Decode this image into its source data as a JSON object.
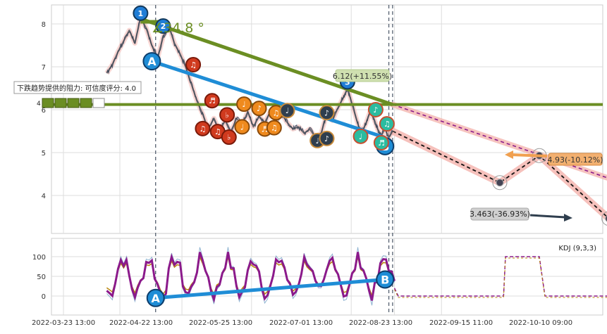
{
  "chart_data": [
    {
      "type": "line",
      "title": "",
      "y_ticks": [
        4,
        5,
        6,
        7,
        8
      ],
      "ylim": [
        3.1,
        8.4
      ],
      "x_ticks": [
        "2022-03-23 13:00",
        "2022-04-22 13:00",
        "2022-05-25 13:00",
        "2022-07-01 13:00",
        "2022-08-23 13:00",
        "2022-09-15 11:00",
        "2022-10-10 09:00"
      ],
      "grid": true,
      "price_series": [
        {
          "d": 23,
          "v": 6.85
        },
        {
          "d": 26,
          "v": 7.05
        },
        {
          "d": 29,
          "v": 7.35
        },
        {
          "d": 32,
          "v": 7.6
        },
        {
          "d": 35,
          "v": 7.85
        },
        {
          "d": 38,
          "v": 7.55
        },
        {
          "d": 41,
          "v": 8.15
        },
        {
          "d": 44,
          "v": 7.9
        },
        {
          "d": 47,
          "v": 7.5
        },
        {
          "d": 50,
          "v": 7.2
        },
        {
          "d": 53,
          "v": 7.7
        },
        {
          "d": 56,
          "v": 7.95
        },
        {
          "d": 59,
          "v": 7.55
        },
        {
          "d": 62,
          "v": 7.3
        },
        {
          "d": 65,
          "v": 7.0
        },
        {
          "d": 68,
          "v": 6.6
        },
        {
          "d": 71,
          "v": 6.2
        },
        {
          "d": 74,
          "v": 5.9
        },
        {
          "d": 77,
          "v": 5.55
        },
        {
          "d": 80,
          "v": 5.8
        },
        {
          "d": 83,
          "v": 5.5
        },
        {
          "d": 86,
          "v": 5.75
        },
        {
          "d": 89,
          "v": 5.45
        },
        {
          "d": 92,
          "v": 5.8
        },
        {
          "d": 95,
          "v": 5.65
        },
        {
          "d": 98,
          "v": 5.95
        },
        {
          "d": 101,
          "v": 5.6
        },
        {
          "d": 104,
          "v": 5.85
        },
        {
          "d": 107,
          "v": 5.7
        },
        {
          "d": 110,
          "v": 5.95
        },
        {
          "d": 113,
          "v": 5.75
        },
        {
          "d": 116,
          "v": 5.9
        },
        {
          "d": 119,
          "v": 5.7
        },
        {
          "d": 122,
          "v": 5.55
        },
        {
          "d": 125,
          "v": 5.6
        },
        {
          "d": 128,
          "v": 5.45
        },
        {
          "d": 131,
          "v": 5.55
        },
        {
          "d": 134,
          "v": 5.35
        },
        {
          "d": 137,
          "v": 5.45
        },
        {
          "d": 140,
          "v": 5.9
        },
        {
          "d": 143,
          "v": 5.75
        },
        {
          "d": 146,
          "v": 6.05
        },
        {
          "d": 149,
          "v": 6.3
        },
        {
          "d": 151,
          "v": 6.5
        },
        {
          "d": 153,
          "v": 6.2
        },
        {
          "d": 155,
          "v": 5.9
        },
        {
          "d": 157,
          "v": 5.6
        },
        {
          "d": 159,
          "v": 5.5
        },
        {
          "d": 161,
          "v": 5.7
        },
        {
          "d": 163,
          "v": 5.95
        },
        {
          "d": 165,
          "v": 5.8
        },
        {
          "d": 167,
          "v": 5.55
        },
        {
          "d": 169,
          "v": 5.4
        },
        {
          "d": 171,
          "v": 5.55
        },
        {
          "d": 173,
          "v": 5.35
        },
        {
          "d": 175,
          "v": 5.5
        }
      ],
      "trendlines": [
        {
          "kind": "resistance-fan",
          "from": {
            "d": 41,
            "v": 8.12
          },
          "to": {
            "d": 175,
            "v": 6.12
          },
          "color": "#6b8e23"
        },
        {
          "kind": "horizontal",
          "v": 6.12,
          "color": "#6b8e23"
        },
        {
          "kind": "support",
          "from": {
            "d": 47,
            "v": 7.13
          },
          "to": {
            "d": 171,
            "v": 5.35
          },
          "color": "#1f8dd6",
          "labels": [
            "A",
            "B"
          ]
        }
      ],
      "forecast_path": [
        {
          "d": 175,
          "v": 5.5
        },
        {
          "d": 232,
          "v": 4.3
        },
        {
          "d": 253,
          "v": 4.93
        },
        {
          "d": 290,
          "v": 3.463
        }
      ],
      "forecast_trend": [
        {
          "d": 175,
          "v": 6.12
        },
        {
          "d": 290,
          "v": 4.4
        }
      ],
      "markers": [
        {
          "d": 41,
          "v": 8.25,
          "label": "1",
          "style": "peak"
        },
        {
          "d": 53,
          "v": 7.95,
          "label": "2",
          "style": "peak"
        },
        {
          "d": 151,
          "v": 6.65,
          "label": "3",
          "style": "peak"
        },
        {
          "d": 47,
          "v": 7.13,
          "label": "A",
          "style": "anchor"
        },
        {
          "d": 171,
          "v": 5.15,
          "label": "B",
          "style": "anchor"
        },
        {
          "d": 69,
          "v": 7.05,
          "label": "♫",
          "style": "red"
        },
        {
          "d": 79,
          "v": 6.21,
          "label": "♬",
          "style": "red"
        },
        {
          "d": 74,
          "v": 5.56,
          "label": "♫",
          "style": "red"
        },
        {
          "d": 82,
          "v": 5.49,
          "label": "♫",
          "style": "red"
        },
        {
          "d": 87,
          "v": 5.88,
          "label": "♭",
          "style": "red"
        },
        {
          "d": 88,
          "v": 5.36,
          "label": "♭",
          "style": "red"
        },
        {
          "d": 95,
          "v": 5.6,
          "label": "♩",
          "style": "orange"
        },
        {
          "d": 96,
          "v": 6.13,
          "label": "♩",
          "style": "orange"
        },
        {
          "d": 104,
          "v": 6.03,
          "label": "♪",
          "style": "orange"
        },
        {
          "d": 107,
          "v": 5.55,
          "label": "♬",
          "style": "orange"
        },
        {
          "d": 112,
          "v": 5.58,
          "label": "♫",
          "style": "orange"
        },
        {
          "d": 113,
          "v": 5.93,
          "label": "♫",
          "style": "orange"
        },
        {
          "d": 119,
          "v": 5.98,
          "label": "♩",
          "style": "dark"
        },
        {
          "d": 135,
          "v": 5.28,
          "label": "♩",
          "style": "dark"
        },
        {
          "d": 140,
          "v": 5.93,
          "label": "♪",
          "style": "dark"
        },
        {
          "d": 140,
          "v": 5.33,
          "label": "♪",
          "style": "dark"
        },
        {
          "d": 158,
          "v": 5.38,
          "label": "♩",
          "style": "teal"
        },
        {
          "d": 166,
          "v": 6.0,
          "label": "♪",
          "style": "teal"
        },
        {
          "d": 172,
          "v": 5.67,
          "label": "♫",
          "style": "teal"
        },
        {
          "d": 169,
          "v": 5.23,
          "label": "♬",
          "style": "teal"
        }
      ],
      "vlines": [
        49,
        173,
        175
      ],
      "annotations": {
        "angle": "∡34.8 °",
        "resistance_label": "6.12(+11.55%)",
        "target_up": "4.93(-10.12%)",
        "target_down": "3.463(-36.93%)",
        "tooltip": "下跌趋势提供的阻力: 可信度评分: 4.0",
        "tooltip_count": "4"
      },
      "colors": {
        "price": "#4a5a70",
        "resistance": "#6b8e23",
        "support": "#1f8dd6",
        "forecast_band": "#f4b6b0",
        "forecast_dash": "#8b1a8b"
      }
    },
    {
      "type": "line",
      "title": "KDJ (9,3,3)",
      "y_ticks": [
        0,
        50,
        100
      ],
      "ylim": [
        -40,
        150
      ],
      "indicator_name": "KDJ (9,3,3)",
      "k_series_seed": 7,
      "trend": {
        "from": {
          "d": 49,
          "v": -5
        },
        "to": {
          "d": 171,
          "v": 42
        },
        "labels": [
          "A",
          "B"
        ],
        "color": "#1f8dd6"
      },
      "flat_segments": [
        {
          "from": 180,
          "to": 234,
          "v": 0
        },
        {
          "from": 235,
          "to": 253,
          "v": 100
        },
        {
          "from": 256,
          "to": 290,
          "v": 0
        }
      ],
      "colors": {
        "k": "#8b1a8b",
        "d": "#b8860b",
        "j": "#4682b4"
      }
    }
  ]
}
